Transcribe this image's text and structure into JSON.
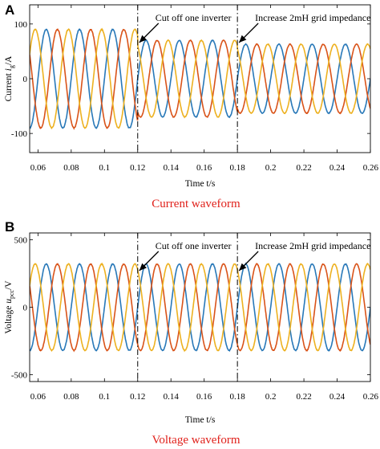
{
  "chart_data": [
    {
      "type": "line",
      "panel_letter": "A",
      "caption": "Current waveform",
      "ylabel": "Current i_g/A",
      "ylabel_main": "Current ",
      "ylabel_italic": "i",
      "ylabel_sub": "g",
      "ylabel_tail": "/A",
      "xlabel": "Time t/s",
      "xlim": [
        0.055,
        0.26
      ],
      "ylim": [
        -135,
        135
      ],
      "xticks": [
        "0.06",
        "0.08",
        "0.1",
        "0.12",
        "0.14",
        "0.16",
        "0.18",
        "0.2",
        "0.22",
        "0.24",
        "0.26"
      ],
      "xtick_values": [
        0.06,
        0.08,
        0.1,
        0.12,
        0.14,
        0.16,
        0.18,
        0.2,
        0.22,
        0.24,
        0.26
      ],
      "yticks": [
        "100",
        "0",
        "-100"
      ],
      "ytick_values": [
        100,
        0,
        -100
      ],
      "frequency_hz": 50,
      "events": [
        {
          "x": 0.12,
          "text": "Cut off one inverter"
        },
        {
          "x": 0.18,
          "text": "Increase 2mH grid impedance"
        }
      ],
      "amplitude_segments": [
        {
          "from": 0.055,
          "to": 0.12,
          "amplitude": 90
        },
        {
          "from": 0.12,
          "to": 0.18,
          "amplitude": 70
        },
        {
          "from": 0.18,
          "to": 0.26,
          "amplitude": 63
        }
      ],
      "series": [
        {
          "phase_deg": 0,
          "color": "#2878b8"
        },
        {
          "phase_deg": -120,
          "color": "#d95319"
        },
        {
          "phase_deg": 120,
          "color": "#edb120"
        }
      ]
    },
    {
      "type": "line",
      "panel_letter": "B",
      "caption": "Voltage waveform",
      "ylabel": "Voltage u_pcc/V",
      "ylabel_main": "Voltage ",
      "ylabel_italic": "u",
      "ylabel_sub": "pcc",
      "ylabel_tail": "/V",
      "xlabel": "Time t/s",
      "xlim": [
        0.055,
        0.26
      ],
      "ylim": [
        -550,
        550
      ],
      "xticks": [
        "0.06",
        "0.08",
        "0.1",
        "0.12",
        "0.14",
        "0.16",
        "0.18",
        "0.2",
        "0.22",
        "0.24",
        "0.26"
      ],
      "xtick_values": [
        0.06,
        0.08,
        0.1,
        0.12,
        0.14,
        0.16,
        0.18,
        0.2,
        0.22,
        0.24,
        0.26
      ],
      "yticks": [
        "500",
        "0",
        "-500"
      ],
      "ytick_values": [
        500,
        0,
        -500
      ],
      "frequency_hz": 50,
      "events": [
        {
          "x": 0.12,
          "text": "Cut off one inverter"
        },
        {
          "x": 0.18,
          "text": "Increase 2mH grid impedance"
        }
      ],
      "amplitude_segments": [
        {
          "from": 0.055,
          "to": 0.12,
          "amplitude": 320
        },
        {
          "from": 0.12,
          "to": 0.18,
          "amplitude": 320
        },
        {
          "from": 0.18,
          "to": 0.26,
          "amplitude": 320
        }
      ],
      "series": [
        {
          "phase_deg": 0,
          "color": "#2878b8"
        },
        {
          "phase_deg": -120,
          "color": "#d95319"
        },
        {
          "phase_deg": 120,
          "color": "#edb120"
        }
      ]
    }
  ]
}
